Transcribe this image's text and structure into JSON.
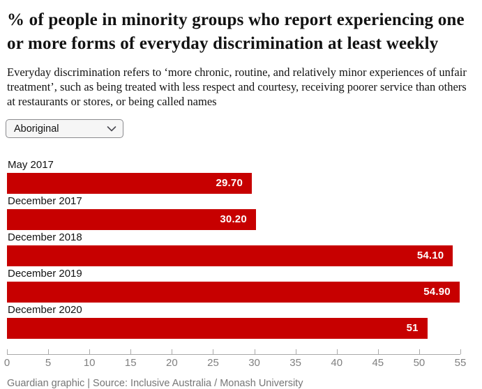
{
  "header": {
    "title": "% of people in minority groups who report experiencing one or more forms of everyday discrimination at least weekly",
    "subtitle": "Everyday discrimination refers to ‘more chronic, routine, and relatively minor experiences of unfair treatment’, such as being treated with less respect and courtesy, receiving poorer service than others at restaurants or stores, or being called names"
  },
  "controls": {
    "group_select": {
      "value": "Aboriginal",
      "chevron_icon": "chevron-down"
    }
  },
  "chart_data": {
    "type": "bar",
    "orientation": "horizontal",
    "categories": [
      "May 2017",
      "December 2017",
      "December 2018",
      "December 2019",
      "December 2020"
    ],
    "values": [
      29.7,
      30.2,
      54.1,
      54.9,
      51
    ],
    "value_labels": [
      "29.70",
      "30.20",
      "54.10",
      "54.90",
      "51"
    ],
    "xlim": [
      0,
      55
    ],
    "x_ticks": [
      0,
      5,
      10,
      15,
      20,
      25,
      30,
      35,
      40,
      45,
      50,
      55
    ],
    "grid": false,
    "legend": "none",
    "bar_color": "#c70000",
    "value_label_color": "#ffffff",
    "axis_color": "#a8a8a8",
    "tick_label_color": "#808080"
  },
  "footer": {
    "credit": "Guardian graphic | Source: Inclusive Australia / Monash University"
  }
}
